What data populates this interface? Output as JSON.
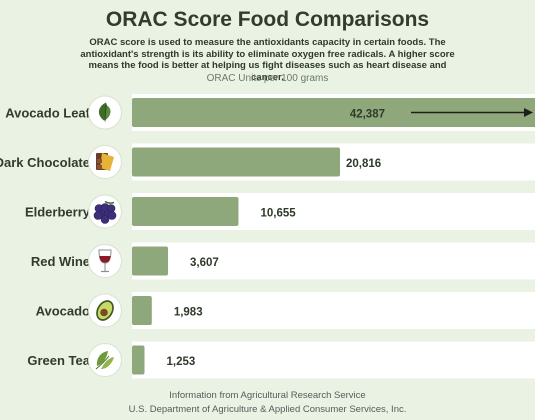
{
  "header": {
    "title": "ORAC Score Food Comparisons",
    "intro": "ORAC score is used to measure the antioxidants capacity in certain foods. The antioxidant's strength is its ability to eliminate oxygen free radicals. A higher score means the food is better at helping us fight diseases such as heart disease and cancer.",
    "unit_label": "ORAC Units per 100 grams"
  },
  "chart_data": {
    "type": "bar",
    "orientation": "horizontal",
    "categories": [
      "Avocado Leaf",
      "Dark Chocolate",
      "Elderberry",
      "Red Wine",
      "Avocado",
      "Green Tea"
    ],
    "values": [
      42387,
      20816,
      10655,
      3607,
      1983,
      1253
    ],
    "value_labels": [
      "42,387",
      "20,816",
      "10,655",
      "3,607",
      "1,983",
      "1,253"
    ],
    "icons": [
      "leaf-icon",
      "chocolate-icon",
      "elderberry-icon",
      "wine-glass-icon",
      "avocado-icon",
      "tea-leaf-icon"
    ],
    "xlim": [
      0,
      20816
    ],
    "grid": false,
    "bar_color": "#8fa87b",
    "track_color": "#ffffff",
    "arrow_on_first_bar": true
  },
  "footer": {
    "line1": "Information from Agricultural Research Service",
    "line2": "U.S. Department of Agriculture & Applied Consumer Services, Inc."
  }
}
